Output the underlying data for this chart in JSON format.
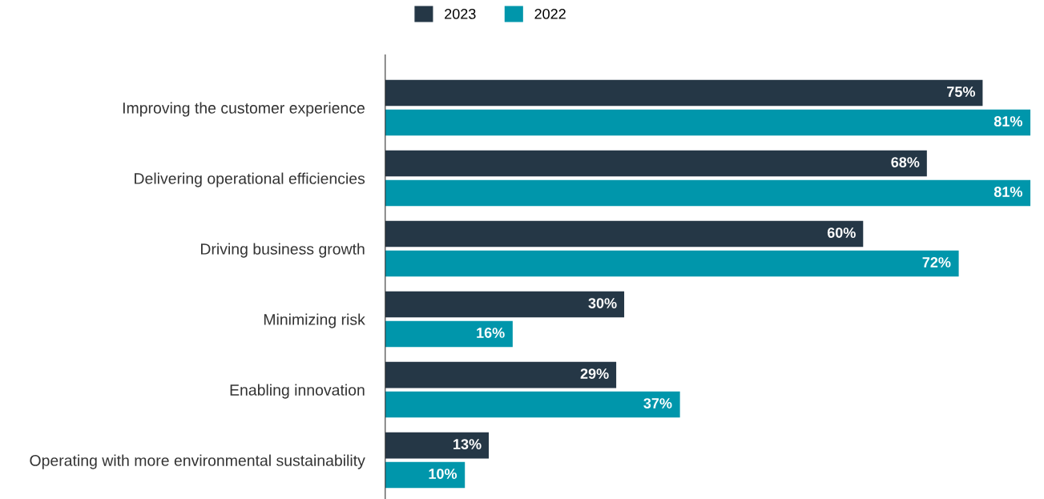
{
  "chart_data": {
    "type": "bar",
    "orientation": "horizontal",
    "legend": "top",
    "categories": [
      "Improving the customer experience",
      "Delivering operational efficiencies",
      "Driving business growth",
      "Minimizing risk",
      "Enabling innovation",
      "Operating with more environmental sustainability"
    ],
    "series": [
      {
        "name": "2023",
        "color": "#253746",
        "values": [
          75,
          68,
          60,
          30,
          29,
          13
        ],
        "value_labels": [
          "75%",
          "68%",
          "60%",
          "30%",
          "29%",
          "13%"
        ]
      },
      {
        "name": "2022",
        "color": "#0096ab",
        "values": [
          81,
          81,
          72,
          16,
          37,
          10
        ],
        "value_labels": [
          "81%",
          "81%",
          "72%",
          "16%",
          "37%",
          "10%"
        ]
      }
    ]
  }
}
